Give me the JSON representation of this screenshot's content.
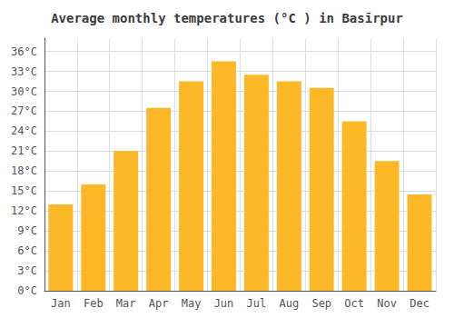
{
  "chart_data": {
    "type": "bar",
    "title": "Average monthly temperatures (°C ) in Basīrpur",
    "categories": [
      "Jan",
      "Feb",
      "Mar",
      "Apr",
      "May",
      "Jun",
      "Jul",
      "Aug",
      "Sep",
      "Oct",
      "Nov",
      "Dec"
    ],
    "values": [
      13,
      16,
      21,
      27.5,
      31.5,
      34.5,
      32.5,
      31.5,
      30.5,
      25.5,
      19.5,
      14.5
    ],
    "color": "#FDB827",
    "ylim": [
      0,
      38
    ],
    "yticks": [
      {
        "value": 0,
        "label": "0°C"
      },
      {
        "value": 3,
        "label": "3°C"
      },
      {
        "value": 6,
        "label": "6°C"
      },
      {
        "value": 9,
        "label": "9°C"
      },
      {
        "value": 12,
        "label": "12°C"
      },
      {
        "value": 15,
        "label": "15°C"
      },
      {
        "value": 18,
        "label": "18°C"
      },
      {
        "value": 21,
        "label": "21°C"
      },
      {
        "value": 24,
        "label": "24°C"
      },
      {
        "value": 27,
        "label": "27°C"
      },
      {
        "value": 30,
        "label": "30°C"
      },
      {
        "value": 33,
        "label": "33°C"
      },
      {
        "value": 36,
        "label": "36°C"
      }
    ],
    "grid": true
  }
}
